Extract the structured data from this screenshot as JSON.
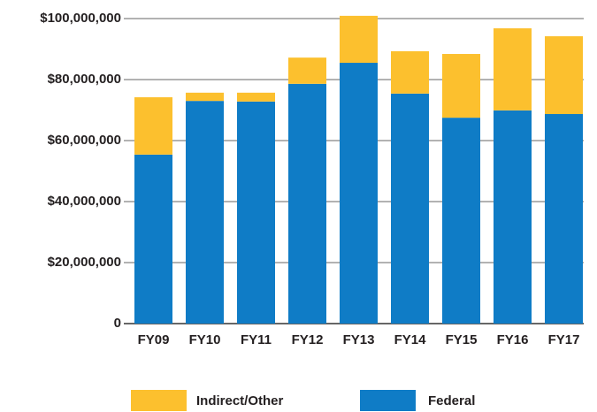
{
  "chart_data": {
    "type": "stacked_bar",
    "categories": [
      "FY09",
      "FY10",
      "FY11",
      "FY12",
      "FY13",
      "FY14",
      "FY15",
      "FY16",
      "FY17"
    ],
    "series": [
      {
        "name": "Federal",
        "color": "#0f7cc6",
        "values": [
          55400000,
          73000000,
          72800000,
          78600000,
          85500000,
          75400000,
          67500000,
          69900000,
          68700000
        ]
      },
      {
        "name": "Indirect/Other",
        "color": "#fcc02e",
        "values": [
          18800000,
          2700000,
          2900000,
          8600000,
          15400000,
          13900000,
          20900000,
          26900000,
          25500000
        ]
      }
    ],
    "ylim": [
      0,
      100000000
    ],
    "yticks": [
      0,
      {
        "value": 20000000,
        "label": "$20,000,000"
      },
      {
        "value": 40000000,
        "label": "$40,000,000"
      },
      {
        "value": 60000000,
        "label": "$60,000,000"
      },
      {
        "value": 80000000,
        "label": "$80,000,000"
      },
      {
        "value": 100000000,
        "label": "$100,000,000"
      }
    ],
    "grid": true,
    "legend": "bottom"
  }
}
